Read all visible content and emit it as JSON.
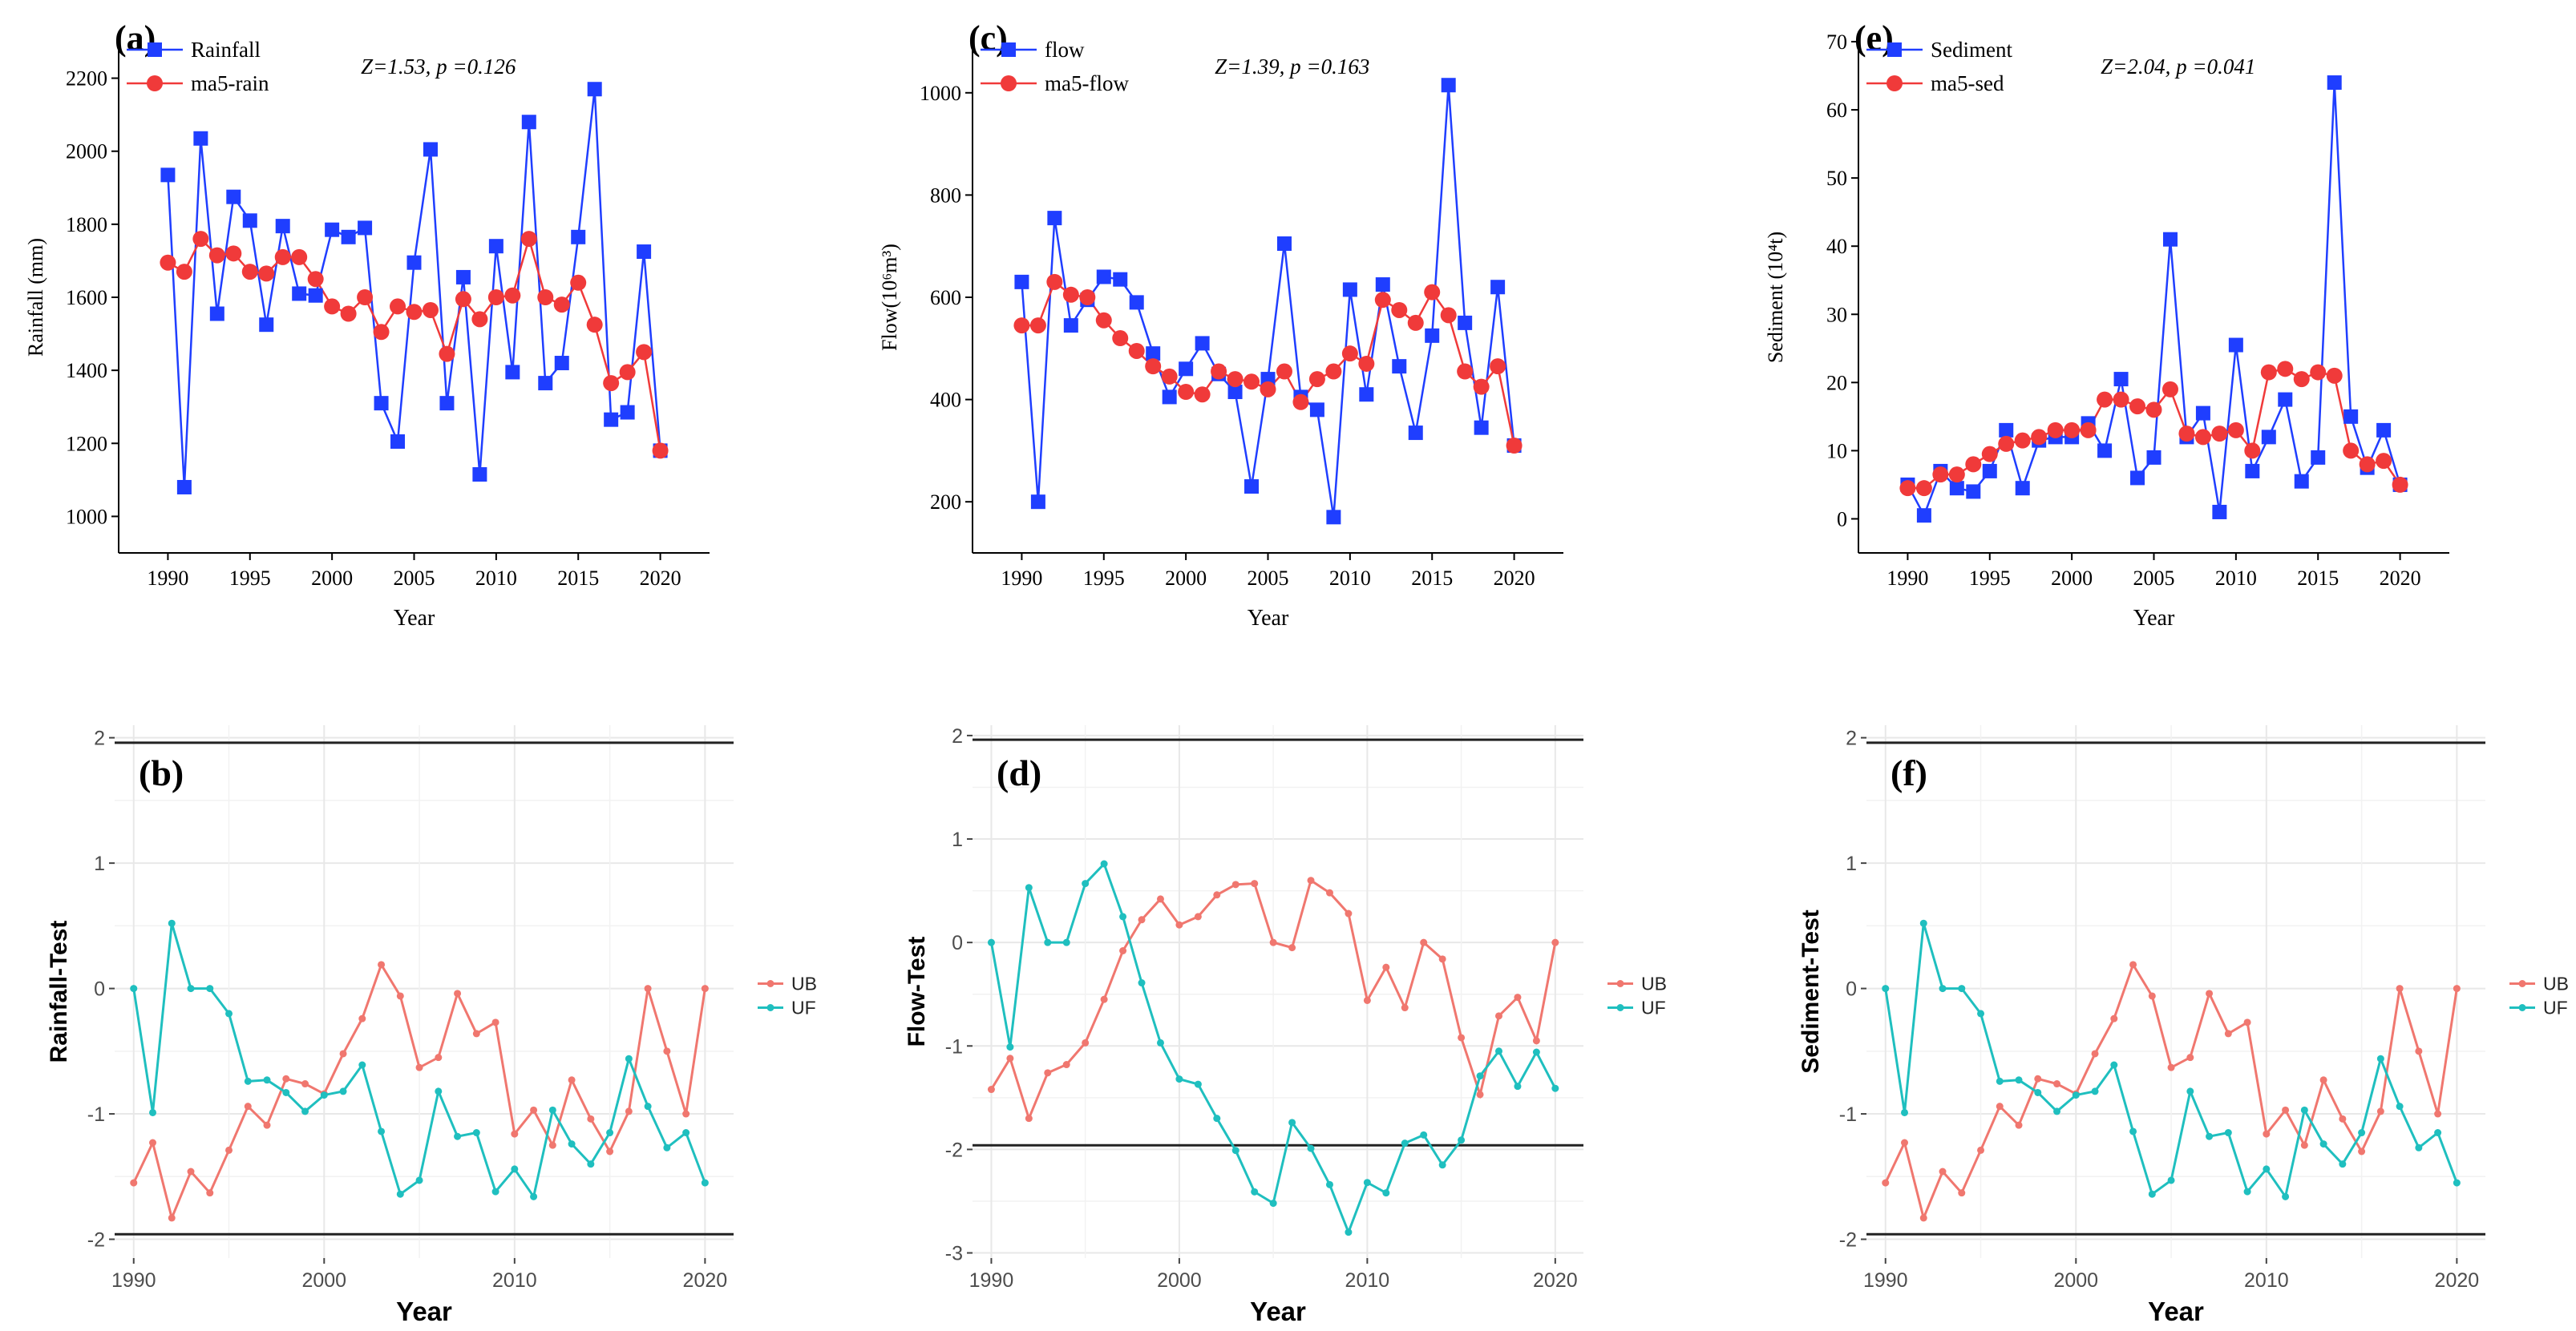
{
  "figure": {
    "panels": [
      "(a)",
      "(b)",
      "(c)",
      "(d)",
      "(e)",
      "(f)"
    ]
  },
  "colors": {
    "observed": "#1f3eff",
    "moving_avg": "#f03a3a",
    "ub": "#f0776f",
    "uf": "#1fbfbf",
    "grid": "#e8e8e8"
  },
  "chart_data": [
    {
      "id": "a",
      "type": "line",
      "panel_label": "(a)",
      "annotation": "Z=1.53, p =0.126",
      "xlabel": "Year",
      "ylabel": "Rainfall (mm)",
      "xlim": [
        1987,
        2023
      ],
      "ylim": [
        900,
        2300
      ],
      "xticks": [
        1990,
        1995,
        2000,
        2005,
        2010,
        2015,
        2020
      ],
      "yticks": [
        1000,
        1200,
        1400,
        1600,
        1800,
        2000,
        2200
      ],
      "legend": "top-left",
      "x": [
        1990,
        1991,
        1992,
        1993,
        1994,
        1995,
        1996,
        1997,
        1998,
        1999,
        2000,
        2001,
        2002,
        2003,
        2004,
        2005,
        2006,
        2007,
        2008,
        2009,
        2010,
        2011,
        2012,
        2013,
        2014,
        2015,
        2016,
        2017,
        2018,
        2019,
        2020
      ],
      "series": [
        {
          "name": "Rainfall",
          "marker": "square",
          "values": [
            1935,
            1080,
            2035,
            1555,
            1875,
            1810,
            1525,
            1795,
            1610,
            1605,
            1785,
            1765,
            1790,
            1310,
            1205,
            1695,
            2005,
            1310,
            1655,
            1115,
            1740,
            1395,
            2080,
            1365,
            1420,
            1765,
            2170,
            1265,
            1285,
            1725,
            1180
          ]
        },
        {
          "name": "ma5-rain",
          "marker": "circle",
          "values": [
            1695,
            1670,
            1760,
            1715,
            1720,
            1670,
            1665,
            1710,
            1710,
            1650,
            1575,
            1555,
            1600,
            1505,
            1575,
            1560,
            1565,
            1445,
            1595,
            1540,
            1600,
            1605,
            1760,
            1600,
            1580,
            1640,
            1525,
            1365,
            1395,
            1450,
            1180
          ]
        }
      ]
    },
    {
      "id": "b",
      "type": "line",
      "panel_label": "(b)",
      "xlabel": "Year",
      "ylabel": "Rainfall-Test",
      "xlim": [
        1989,
        2021.5
      ],
      "ylim": [
        -2.15,
        2.1
      ],
      "xticks": [
        1990,
        2000,
        2010,
        2020
      ],
      "yticks": [
        -2,
        -1,
        0,
        1,
        2
      ],
      "reference_lines": [
        1.96,
        -1.96
      ],
      "legend": "right",
      "x": [
        1990,
        1991,
        1992,
        1993,
        1994,
        1995,
        1996,
        1997,
        1998,
        1999,
        2000,
        2001,
        2002,
        2003,
        2004,
        2005,
        2006,
        2007,
        2008,
        2009,
        2010,
        2011,
        2012,
        2013,
        2014,
        2015,
        2016,
        2017,
        2018,
        2019,
        2020
      ],
      "series": [
        {
          "name": "UB",
          "values": [
            -1.55,
            -1.23,
            -1.83,
            -1.46,
            -1.63,
            -1.29,
            -0.94,
            -1.09,
            -0.72,
            -0.76,
            -0.84,
            -0.52,
            -0.24,
            0.19,
            -0.06,
            -0.63,
            -0.55,
            -0.04,
            -0.36,
            -0.27,
            -1.16,
            -0.97,
            -1.25,
            -0.73,
            -1.04,
            -1.3,
            -0.98,
            0.0,
            -0.5,
            -1.0,
            0.0
          ]
        },
        {
          "name": "UF",
          "values": [
            0.0,
            -0.99,
            0.52,
            0.0,
            0.0,
            -0.2,
            -0.74,
            -0.73,
            -0.83,
            -0.98,
            -0.85,
            -0.82,
            -0.61,
            -1.14,
            -1.64,
            -1.53,
            -0.82,
            -1.18,
            -1.15,
            -1.62,
            -1.44,
            -1.66,
            -0.97,
            -1.24,
            -1.4,
            -1.15,
            -0.56,
            -0.94,
            -1.27,
            -1.15,
            -1.55
          ]
        }
      ]
    },
    {
      "id": "c",
      "type": "line",
      "panel_label": "(c)",
      "annotation": "Z=1.39, p =0.163",
      "xlabel": "Year",
      "ylabel": "Flow(10⁶m³)",
      "xlim": [
        1987,
        2023
      ],
      "ylim": [
        100,
        1100
      ],
      "xticks": [
        1990,
        1995,
        2000,
        2005,
        2010,
        2015,
        2020
      ],
      "yticks": [
        200,
        400,
        600,
        800,
        1000
      ],
      "legend": "top-left",
      "x": [
        1990,
        1991,
        1992,
        1993,
        1994,
        1995,
        1996,
        1997,
        1998,
        1999,
        2000,
        2001,
        2002,
        2003,
        2004,
        2005,
        2006,
        2007,
        2008,
        2009,
        2010,
        2011,
        2012,
        2013,
        2014,
        2015,
        2016,
        2017,
        2018,
        2019,
        2020
      ],
      "series": [
        {
          "name": "flow",
          "marker": "square",
          "values": [
            630,
            200,
            755,
            545,
            595,
            640,
            635,
            590,
            490,
            405,
            460,
            510,
            450,
            415,
            230,
            440,
            705,
            405,
            380,
            170,
            615,
            410,
            625,
            465,
            335,
            525,
            1015,
            550,
            345,
            620,
            310
          ]
        },
        {
          "name": "ma5-flow",
          "marker": "circle",
          "values": [
            545,
            545,
            630,
            605,
            600,
            555,
            520,
            495,
            465,
            445,
            415,
            410,
            455,
            440,
            435,
            420,
            455,
            395,
            440,
            455,
            490,
            470,
            595,
            575,
            550,
            610,
            565,
            455,
            425,
            465,
            310
          ]
        }
      ]
    },
    {
      "id": "d",
      "type": "line",
      "panel_label": "(d)",
      "xlabel": "Year",
      "ylabel": "Flow-Test",
      "xlim": [
        1989,
        2021.5
      ],
      "ylim": [
        -3.05,
        2.1
      ],
      "xticks": [
        1990,
        2000,
        2010,
        2020
      ],
      "yticks": [
        -3,
        -2,
        -1,
        0,
        1,
        2
      ],
      "reference_lines": [
        1.96,
        -1.96
      ],
      "legend": "right",
      "x": [
        1990,
        1991,
        1992,
        1993,
        1994,
        1995,
        1996,
        1997,
        1998,
        1999,
        2000,
        2001,
        2002,
        2003,
        2004,
        2005,
        2006,
        2007,
        2008,
        2009,
        2010,
        2011,
        2012,
        2013,
        2014,
        2015,
        2016,
        2017,
        2018,
        2019,
        2020
      ],
      "series": [
        {
          "name": "UB",
          "values": [
            -1.42,
            -1.12,
            -1.7,
            -1.26,
            -1.18,
            -0.97,
            -0.55,
            -0.08,
            0.22,
            0.42,
            0.17,
            0.25,
            0.46,
            0.56,
            0.57,
            0.0,
            -0.05,
            0.6,
            0.48,
            0.28,
            -0.56,
            -0.24,
            -0.63,
            0.0,
            -0.16,
            -0.92,
            -1.47,
            -0.71,
            -0.53,
            -0.95,
            0.0
          ]
        },
        {
          "name": "UF",
          "values": [
            0.0,
            -1.01,
            0.53,
            0.0,
            0.0,
            0.57,
            0.76,
            0.25,
            -0.39,
            -0.97,
            -1.32,
            -1.37,
            -1.7,
            -2.01,
            -2.41,
            -2.52,
            -1.74,
            -1.99,
            -2.34,
            -2.8,
            -2.32,
            -2.42,
            -1.94,
            -1.86,
            -2.15,
            -1.91,
            -1.29,
            -1.05,
            -1.39,
            -1.06,
            -1.41
          ]
        }
      ]
    },
    {
      "id": "e",
      "type": "line",
      "panel_label": "(e)",
      "annotation": "Z=2.04, p =0.041",
      "xlabel": "Year",
      "ylabel": "Sediment (10⁴t)",
      "xlim": [
        1987,
        2023
      ],
      "ylim": [
        -5,
        70
      ],
      "xticks": [
        1990,
        1995,
        2000,
        2005,
        2010,
        2015,
        2020
      ],
      "yticks": [
        0,
        10,
        20,
        30,
        40,
        50,
        60,
        70
      ],
      "legend": "top-left",
      "x": [
        1990,
        1991,
        1992,
        1993,
        1994,
        1995,
        1996,
        1997,
        1998,
        1999,
        2000,
        2001,
        2002,
        2003,
        2004,
        2005,
        2006,
        2007,
        2008,
        2009,
        2010,
        2011,
        2012,
        2013,
        2014,
        2015,
        2016,
        2017,
        2018,
        2019,
        2020
      ],
      "series": [
        {
          "name": "Sediment",
          "marker": "square",
          "values": [
            5,
            0.5,
            7,
            4.5,
            4,
            7,
            13,
            4.5,
            11.5,
            12,
            12,
            14,
            10,
            20.5,
            6,
            9,
            41,
            12,
            15.5,
            1,
            25.5,
            7,
            12,
            17.5,
            5.5,
            9,
            64,
            15,
            7.5,
            13,
            5
          ]
        },
        {
          "name": "ma5-sed",
          "marker": "circle",
          "values": [
            4.5,
            4.5,
            6.5,
            6.5,
            8,
            9.5,
            11,
            11.5,
            12,
            13,
            13,
            13,
            17.5,
            17.5,
            16.5,
            16,
            19,
            12.5,
            12,
            12.5,
            13,
            10,
            21.5,
            22,
            20.5,
            21.5,
            21,
            10,
            8,
            8.5,
            5
          ]
        }
      ]
    },
    {
      "id": "f",
      "type": "line",
      "panel_label": "(f)",
      "xlabel": "Year",
      "ylabel": "Sediment-Test",
      "xlim": [
        1989,
        2021.5
      ],
      "ylim": [
        -2.15,
        2.1
      ],
      "xticks": [
        1990,
        2000,
        2010,
        2020
      ],
      "yticks": [
        -2,
        -1,
        0,
        1,
        2
      ],
      "reference_lines": [
        1.96,
        -1.96
      ],
      "legend": "right",
      "x": [
        1990,
        1991,
        1992,
        1993,
        1994,
        1995,
        1996,
        1997,
        1998,
        1999,
        2000,
        2001,
        2002,
        2003,
        2004,
        2005,
        2006,
        2007,
        2008,
        2009,
        2010,
        2011,
        2012,
        2013,
        2014,
        2015,
        2016,
        2017,
        2018,
        2019,
        2020
      ],
      "series": [
        {
          "name": "UB",
          "values": [
            -1.55,
            -1.23,
            -1.83,
            -1.46,
            -1.63,
            -1.29,
            -0.94,
            -1.09,
            -0.72,
            -0.76,
            -0.84,
            -0.52,
            -0.24,
            0.19,
            -0.06,
            -0.63,
            -0.55,
            -0.04,
            -0.36,
            -0.27,
            -1.16,
            -0.97,
            -1.25,
            -0.73,
            -1.04,
            -1.3,
            -0.98,
            0.0,
            -0.5,
            -1.0,
            0.0
          ]
        },
        {
          "name": "UF",
          "values": [
            0.0,
            -0.99,
            0.52,
            0.0,
            0.0,
            -0.2,
            -0.74,
            -0.73,
            -0.83,
            -0.98,
            -0.85,
            -0.82,
            -0.61,
            -1.14,
            -1.64,
            -1.53,
            -0.82,
            -1.18,
            -1.15,
            -1.62,
            -1.44,
            -1.66,
            -0.97,
            -1.24,
            -1.4,
            -1.15,
            -0.56,
            -0.94,
            -1.27,
            -1.15,
            -1.55
          ]
        }
      ]
    }
  ]
}
